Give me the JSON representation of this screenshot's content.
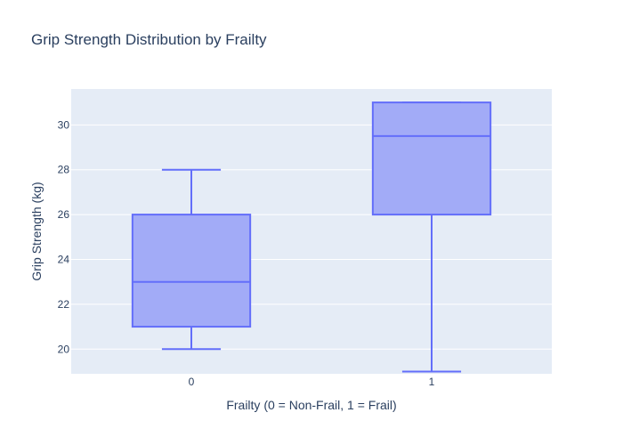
{
  "chart_data": {
    "type": "box",
    "title": "Grip Strength Distribution by Frailty",
    "xlabel": "Frailty (0 = Non-Frail, 1 = Frail)",
    "ylabel": "Grip Strength (kg)",
    "ylim": [
      18.9,
      31.6
    ],
    "yticks": [
      20,
      22,
      24,
      26,
      28,
      30
    ],
    "grid": true,
    "categories": [
      "0",
      "1"
    ],
    "boxes": [
      {
        "category": "0",
        "min": 20,
        "q1": 21,
        "median": 23,
        "q3": 26,
        "max": 28
      },
      {
        "category": "1",
        "min": 19,
        "q1": 26,
        "median": 29.5,
        "q3": 31,
        "max": 31
      }
    ],
    "colors": {
      "plot_bg": "#e5ecf6",
      "grid": "#ffffff",
      "box_fill": "#a2abf7",
      "box_line": "#636efa",
      "text": "#2a3f5f"
    }
  }
}
